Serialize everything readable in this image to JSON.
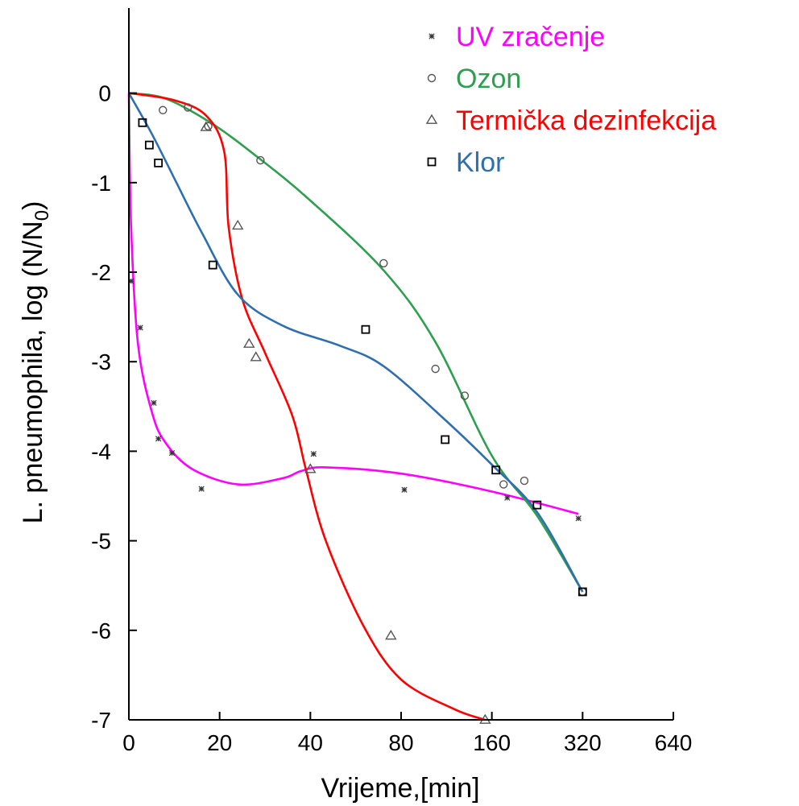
{
  "chart_data": {
    "type": "scatter",
    "xlabel": "Vrijeme,[min]",
    "ylabel": "L. pneumophila, log (N/N",
    "ylabel_sub": "0",
    "ylabel_close": ")",
    "x_scale": "mixed: linear 0-40, log2 40-640",
    "x_ticks": [
      "0",
      "20",
      "40",
      "80",
      "160",
      "320",
      "640"
    ],
    "y_ticks": [
      "0",
      "-1",
      "-2",
      "-3",
      "-4",
      "-5",
      "-6",
      "-7"
    ],
    "ylim": [
      -7,
      0.95
    ],
    "grid": false,
    "legend": "top-right",
    "series": [
      {
        "name": "UV zračenje",
        "marker": "asterisk",
        "color": "#ff00ff",
        "points": [
          [
            0.5,
            -2.1
          ],
          [
            2.5,
            -2.62
          ],
          [
            5.5,
            -3.46
          ],
          [
            6.5,
            -3.86
          ],
          [
            9.5,
            -4.02
          ],
          [
            16,
            -4.42
          ],
          [
            41,
            -4.03
          ],
          [
            82,
            -4.43
          ],
          [
            180,
            -4.52
          ],
          [
            310,
            -4.75
          ]
        ],
        "curve": [
          [
            0,
            0
          ],
          [
            0.5,
            -1.5
          ],
          [
            2,
            -2.8
          ],
          [
            5,
            -3.55
          ],
          [
            8,
            -3.9
          ],
          [
            14,
            -4.2
          ],
          [
            24,
            -4.37
          ],
          [
            34,
            -4.3
          ],
          [
            38,
            -4.22
          ],
          [
            45,
            -4.18
          ],
          [
            80,
            -4.25
          ],
          [
            160,
            -4.45
          ],
          [
            310,
            -4.7
          ]
        ]
      },
      {
        "name": "Ozon",
        "marker": "circle",
        "color": "#2e9e4f",
        "points": [
          [
            7.5,
            -0.19
          ],
          [
            13,
            -0.16
          ],
          [
            17.5,
            -0.37
          ],
          [
            29,
            -0.75
          ],
          [
            70,
            -1.9
          ],
          [
            104,
            -3.08
          ],
          [
            130,
            -3.38
          ],
          [
            175,
            -4.37
          ],
          [
            205,
            -4.33
          ],
          [
            320,
            -5.57
          ]
        ],
        "curve": [
          [
            0,
            0
          ],
          [
            8,
            -0.06
          ],
          [
            18,
            -0.33
          ],
          [
            28,
            -0.7
          ],
          [
            40,
            -1.2
          ],
          [
            70,
            -1.98
          ],
          [
            104,
            -2.78
          ],
          [
            160,
            -4.05
          ],
          [
            226,
            -4.72
          ],
          [
            320,
            -5.57
          ]
        ]
      },
      {
        "name": "Termička dezinfekcija",
        "marker": "triangle",
        "color": "#ff0000",
        "points": [
          [
            17,
            -0.38
          ],
          [
            24,
            -1.48
          ],
          [
            26.5,
            -2.8
          ],
          [
            28,
            -2.95
          ],
          [
            40,
            -4.2
          ],
          [
            74,
            -6.06
          ],
          [
            152,
            -7.0
          ]
        ],
        "curve": [
          [
            0,
            0
          ],
          [
            10,
            -0.08
          ],
          [
            17,
            -0.25
          ],
          [
            21,
            -0.65
          ],
          [
            22,
            -1.5
          ],
          [
            25,
            -2.3
          ],
          [
            30,
            -2.9
          ],
          [
            36,
            -3.6
          ],
          [
            39,
            -4.2
          ],
          [
            45,
            -5.0
          ],
          [
            60,
            -5.95
          ],
          [
            80,
            -6.55
          ],
          [
            120,
            -6.88
          ],
          [
            152,
            -7.0
          ]
        ]
      },
      {
        "name": "Klor",
        "marker": "square",
        "color": "#2e6fb0",
        "points": [
          [
            3,
            -0.33
          ],
          [
            4.5,
            -0.58
          ],
          [
            6.5,
            -0.78
          ],
          [
            18.5,
            -1.92
          ],
          [
            61,
            -2.64
          ],
          [
            112,
            -3.87
          ],
          [
            165,
            -4.21
          ],
          [
            226,
            -4.6
          ],
          [
            320,
            -5.57
          ]
        ],
        "curve": [
          [
            0,
            0
          ],
          [
            5,
            -0.45
          ],
          [
            10,
            -0.95
          ],
          [
            16,
            -1.55
          ],
          [
            24,
            -2.25
          ],
          [
            34,
            -2.6
          ],
          [
            50,
            -2.82
          ],
          [
            70,
            -3.05
          ],
          [
            112,
            -3.65
          ],
          [
            160,
            -4.15
          ],
          [
            226,
            -4.68
          ],
          [
            320,
            -5.57
          ]
        ]
      }
    ]
  }
}
